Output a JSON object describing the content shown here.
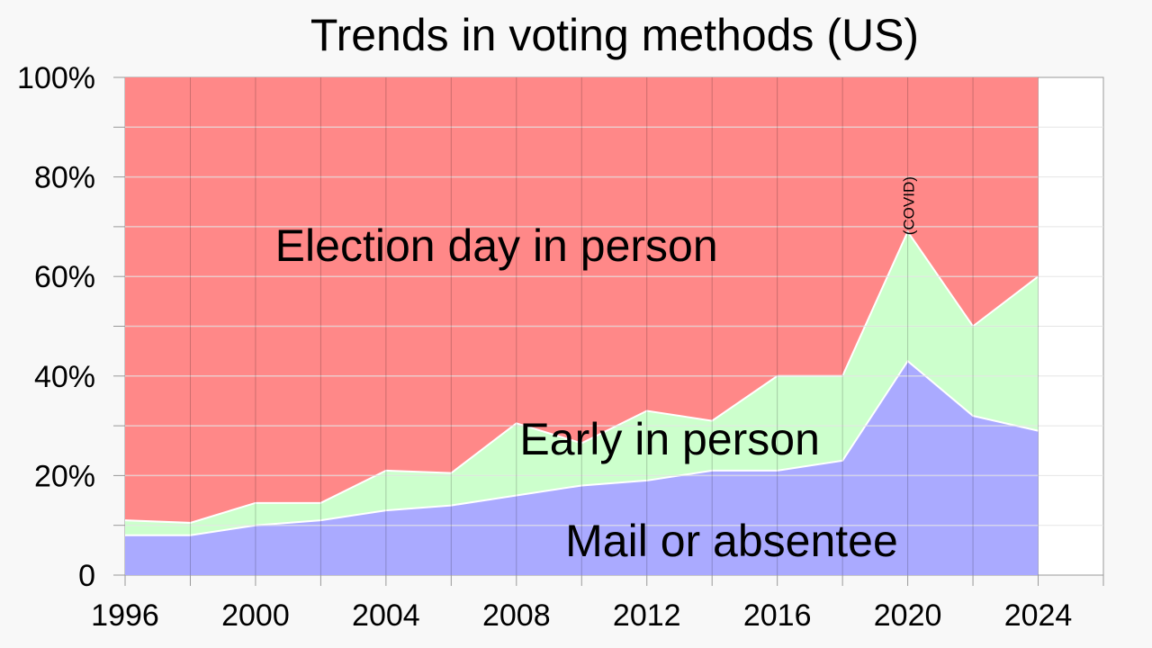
{
  "chart_data": {
    "type": "area",
    "stacked": true,
    "title": "Trends in voting methods (US)",
    "x": [
      1996,
      1998,
      2000,
      2002,
      2004,
      2006,
      2008,
      2010,
      2012,
      2014,
      2016,
      2018,
      2020,
      2022,
      2024
    ],
    "xlim": [
      1996,
      2026
    ],
    "xticks": [
      "1996",
      "2000",
      "2004",
      "2008",
      "2012",
      "2016",
      "2020",
      "2024"
    ],
    "ylim": [
      0,
      100
    ],
    "yticks": [
      "0",
      "20%",
      "40%",
      "60%",
      "80%",
      "100%"
    ],
    "grid": true,
    "series": [
      {
        "name": "Mail or absentee",
        "color": "#aaaaff",
        "values": [
          8,
          8,
          10,
          11,
          13,
          14,
          16,
          18,
          19,
          21,
          21,
          23,
          43,
          32,
          29
        ]
      },
      {
        "name": "Early in person",
        "color": "#ccffcc",
        "values": [
          3,
          2.5,
          4.5,
          3.5,
          8,
          6.5,
          14.5,
          8.5,
          14,
          10,
          19,
          17,
          26,
          18,
          31
        ]
      },
      {
        "name": "Election day in person",
        "color": "#ff8888",
        "values": [
          89,
          89.5,
          85.5,
          85.5,
          79,
          79.5,
          69.5,
          73.5,
          67,
          69,
          60,
          60,
          31,
          50,
          40
        ]
      }
    ],
    "annotations": [
      {
        "text": "(COVID)",
        "x": 2020
      }
    ]
  }
}
